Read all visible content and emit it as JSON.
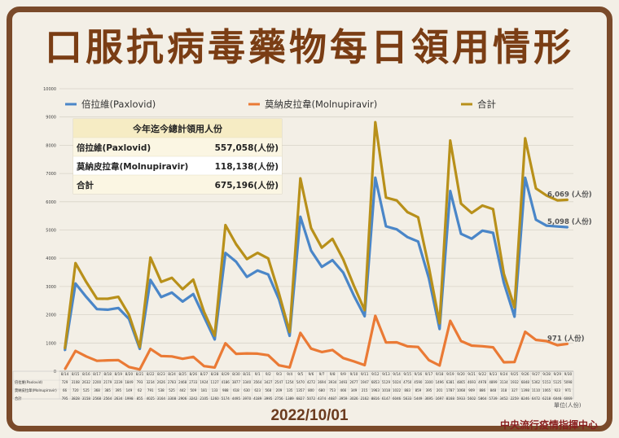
{
  "title": "口服抗病毒藥物每日領用情形",
  "date": "2022/10/01",
  "org": "中央流行疫情指揮中心",
  "unit": "單位(人份)",
  "summary": {
    "header": "今年迄今總計領用人份",
    "rows": [
      {
        "label": "倍拉維(Paxlovid)",
        "value": "557,058(人份)"
      },
      {
        "label": "莫納皮拉韋(Molnupiravir)",
        "value": "118,138(人份)"
      },
      {
        "label": "合計",
        "value": "675,196(人份)"
      }
    ]
  },
  "end_labels": [
    "6,069 (人份)",
    "5,098 (人份)",
    "971 (人份)"
  ],
  "chart_data": {
    "type": "line",
    "ylim": [
      0,
      10000
    ],
    "yticks": [
      0,
      1000,
      2000,
      3000,
      4000,
      5000,
      6000,
      7000,
      8000,
      9000,
      10000
    ],
    "categories": [
      "8/14",
      "8/15",
      "8/16",
      "8/17",
      "8/18",
      "8/19",
      "8/20",
      "8/21",
      "8/22",
      "8/23",
      "8/24",
      "8/25",
      "8/26",
      "8/27",
      "8/28",
      "8/29",
      "8/30",
      "8/31",
      "9/1",
      "9/2",
      "9/3",
      "9/4",
      "9/5",
      "9/6",
      "9/7",
      "9/8",
      "9/9",
      "9/10",
      "9/11",
      "9/12",
      "9/13",
      "9/14",
      "9/15",
      "9/16",
      "9/17",
      "9/18",
      "9/19",
      "9/20",
      "9/21",
      "9/22",
      "9/23",
      "9/24",
      "9/25",
      "9/26",
      "9/27",
      "9/28",
      "9/29",
      "9/30"
    ],
    "legend": [
      "倍拉維(Paxlovid)",
      "莫納皮拉韋(Molnupiravir)",
      "合計"
    ],
    "series": [
      {
        "name": "倍拉維(Paxlovid)",
        "table_label": "倍拉維(Paxlovid)",
        "color": "#4a86c8",
        "values": [
          729,
          3108,
          2632,
          2200,
          2179,
          2239,
          1849,
          793,
          3234,
          2626,
          2783,
          2468,
          2733,
          1924,
          1127,
          4186,
          3877,
          3340,
          3564,
          3427,
          2547,
          1254,
          5470,
          4272,
          3694,
          3934,
          3493,
          2677,
          1947,
          6853,
          5129,
          5024,
          4750,
          4590,
          3300,
          1496,
          6381,
          4865,
          4693,
          4978,
          4899,
          3134,
          1932,
          6848,
          5362,
          5153,
          5125,
          5098
        ]
      },
      {
        "name": "莫納皮拉韋(Molnupiravir)",
        "table_label": "莫納皮拉韋(Molnupiravir)",
        "color": "#ea7a35",
        "values": [
          66,
          720,
          525,
          368,
          385,
          395,
          149,
          62,
          791,
          538,
          525,
          442,
          509,
          181,
          133,
          988,
          618,
          630,
          623,
          568,
          209,
          135,
          1357,
          800,
          680,
          753,
          466,
          349,
          215,
          1963,
          1018,
          1022,
          883,
          859,
          395,
          201,
          1787,
          1068,
          909,
          886,
          848,
          318,
          327,
          1398,
          1110,
          1065,
          923,
          971
        ]
      },
      {
        "name": "合計",
        "table_label": "合計",
        "color": "#b8901a",
        "values": [
          795,
          3828,
          3158,
          2568,
          2564,
          2634,
          1998,
          855,
          4025,
          3164,
          3308,
          2906,
          3242,
          2105,
          1260,
          5174,
          4495,
          3970,
          4189,
          3995,
          2756,
          1389,
          6827,
          5072,
          4374,
          4687,
          3959,
          3026,
          2162,
          8816,
          6147,
          6046,
          5633,
          5449,
          3695,
          1697,
          8168,
          5933,
          5602,
          5864,
          5739,
          3452,
          2259,
          8246,
          6472,
          6218,
          6048,
          6069
        ]
      }
    ]
  }
}
